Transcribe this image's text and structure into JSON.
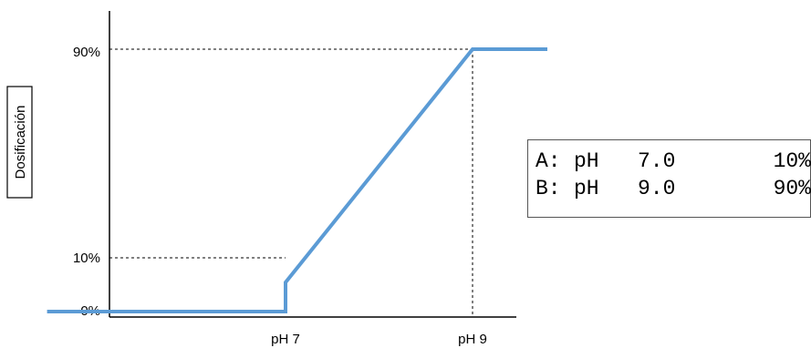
{
  "chart_data": {
    "type": "line",
    "ylabel": "Dosificación",
    "y_tick_labels": [
      "0%",
      "10%",
      "90%"
    ],
    "y_tick_values": [
      0,
      10,
      90
    ],
    "x_tick_labels": [
      "pH 7",
      "pH 9"
    ],
    "x_tick_values": [
      7,
      9
    ],
    "xlim": [
      4.4,
      10.4
    ],
    "ylim": [
      0,
      100
    ],
    "grid": false,
    "line_color": "#5b9bd5",
    "guide_color": "#000000",
    "series": [
      {
        "x": [
          4.45,
          7.0,
          7.0,
          9.0,
          9.8
        ],
        "values": [
          0,
          0,
          10,
          90,
          90
        ]
      }
    ]
  },
  "setpoints": [
    {
      "label": "A:",
      "ph": "pH",
      "value": "7.0",
      "percent": "10%"
    },
    {
      "label": "B:",
      "ph": "pH",
      "value": "9.0",
      "percent": "90%"
    }
  ]
}
